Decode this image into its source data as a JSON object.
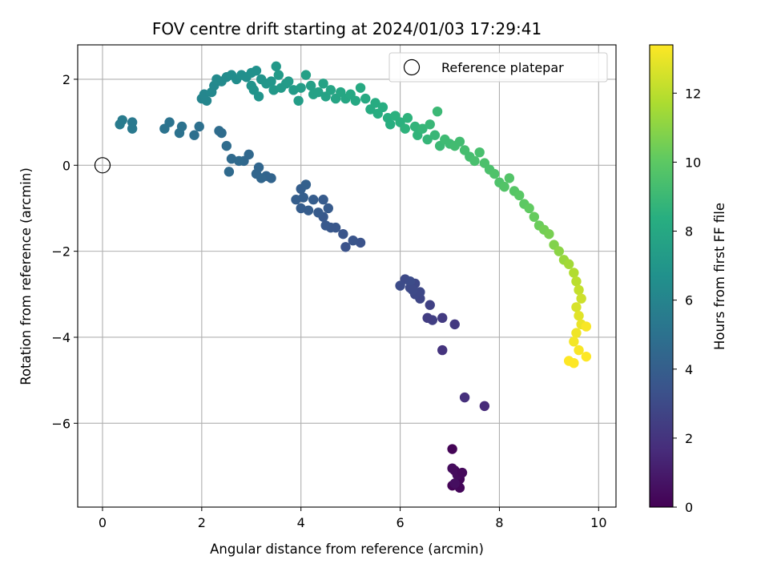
{
  "chart_data": {
    "type": "scatter",
    "title": "FOV centre drift starting at 2024/01/03 17:29:41",
    "xlabel": "Angular distance from reference (arcmin)",
    "ylabel": "Rotation from reference (arcmin)",
    "xlim": [
      -0.5,
      10.35
    ],
    "ylim": [
      -7.95,
      2.8
    ],
    "x_ticks": [
      0,
      2,
      4,
      6,
      8,
      10
    ],
    "y_ticks": [
      -6,
      -4,
      -2,
      0,
      2
    ],
    "x_tick_labels": [
      "0",
      "2",
      "4",
      "6",
      "8",
      "10"
    ],
    "y_tick_labels": [
      "−6",
      "−4",
      "−2",
      "0",
      "2"
    ],
    "grid": true,
    "legend": {
      "placement": "upper-right",
      "entries": [
        "Reference platepar"
      ]
    },
    "reference_point": {
      "x": 0,
      "y": 0
    },
    "colorbar": {
      "label": "Hours from first FF file",
      "colormap": "viridis",
      "range": [
        0,
        13.4
      ],
      "ticks": [
        0,
        2,
        4,
        6,
        8,
        10,
        12
      ],
      "tick_labels": [
        "0",
        "2",
        "4",
        "6",
        "8",
        "10",
        "12"
      ]
    },
    "series": [
      {
        "points": [
          [
            7.05,
            -6.6,
            0.1
          ],
          [
            7.1,
            -7.1,
            0.3
          ],
          [
            7.2,
            -7.3,
            0.2
          ],
          [
            7.15,
            -7.2,
            0.4
          ],
          [
            7.05,
            -7.45,
            0.1
          ],
          [
            7.2,
            -7.5,
            0.2
          ],
          [
            7.25,
            -7.15,
            0.3
          ],
          [
            7.1,
            -7.4,
            0.5
          ],
          [
            7.05,
            -7.05,
            0.4
          ],
          [
            7.7,
            -5.6,
            1.6
          ],
          [
            7.3,
            -5.4,
            1.8
          ],
          [
            6.85,
            -4.3,
            2.0
          ],
          [
            7.1,
            -3.7,
            2.2
          ],
          [
            6.85,
            -3.55,
            2.3
          ],
          [
            6.65,
            -3.6,
            2.5
          ],
          [
            6.55,
            -3.55,
            2.4
          ],
          [
            6.6,
            -3.25,
            2.6
          ],
          [
            6.4,
            -3.1,
            2.8
          ],
          [
            6.3,
            -3.0,
            2.9
          ],
          [
            6.4,
            -2.95,
            2.9
          ],
          [
            6.3,
            -2.75,
            2.9
          ],
          [
            6.2,
            -2.85,
            3.0
          ],
          [
            6.1,
            -2.65,
            3.0
          ],
          [
            6.2,
            -2.7,
            3.1
          ],
          [
            6.0,
            -2.8,
            3.1
          ],
          [
            6.25,
            -2.9,
            3.0
          ],
          [
            5.2,
            -1.8,
            3.4
          ],
          [
            5.05,
            -1.75,
            3.5
          ],
          [
            4.9,
            -1.9,
            3.4
          ],
          [
            4.85,
            -1.6,
            3.5
          ],
          [
            4.7,
            -1.45,
            3.6
          ],
          [
            4.6,
            -1.45,
            3.6
          ],
          [
            4.5,
            -1.4,
            3.7
          ],
          [
            4.45,
            -1.2,
            3.7
          ],
          [
            4.55,
            -1.0,
            3.8
          ],
          [
            4.45,
            -0.8,
            3.8
          ],
          [
            4.25,
            -0.8,
            3.9
          ],
          [
            4.35,
            -1.1,
            3.8
          ],
          [
            4.15,
            -1.05,
            3.9
          ],
          [
            4.0,
            -1.0,
            3.9
          ],
          [
            4.05,
            -0.75,
            4.0
          ],
          [
            3.9,
            -0.8,
            4.0
          ],
          [
            4.0,
            -0.55,
            4.0
          ],
          [
            4.1,
            -0.45,
            4.1
          ],
          [
            3.4,
            -0.3,
            4.3
          ],
          [
            3.3,
            -0.25,
            4.3
          ],
          [
            3.2,
            -0.3,
            4.4
          ],
          [
            3.1,
            -0.2,
            4.4
          ],
          [
            3.15,
            -0.05,
            4.4
          ],
          [
            2.95,
            0.25,
            4.5
          ],
          [
            2.85,
            0.1,
            4.5
          ],
          [
            2.75,
            0.1,
            4.6
          ],
          [
            2.6,
            0.15,
            4.6
          ],
          [
            2.55,
            -0.15,
            4.6
          ],
          [
            2.5,
            0.45,
            4.7
          ],
          [
            2.4,
            0.75,
            4.7
          ],
          [
            2.35,
            0.8,
            4.7
          ],
          [
            1.95,
            0.9,
            4.9
          ],
          [
            1.85,
            0.7,
            4.9
          ],
          [
            1.6,
            0.9,
            5.0
          ],
          [
            1.55,
            0.75,
            5.0
          ],
          [
            1.35,
            1.0,
            5.1
          ],
          [
            1.25,
            0.85,
            5.1
          ],
          [
            0.6,
            0.85,
            5.4
          ],
          [
            0.6,
            1.0,
            5.4
          ],
          [
            0.4,
            1.05,
            5.5
          ],
          [
            0.35,
            0.95,
            5.5
          ],
          [
            2.0,
            1.55,
            6.0
          ],
          [
            2.05,
            1.65,
            6.1
          ],
          [
            2.1,
            1.5,
            6.1
          ],
          [
            2.2,
            1.7,
            6.2
          ],
          [
            2.25,
            1.85,
            6.2
          ],
          [
            2.3,
            2.0,
            6.3
          ],
          [
            2.4,
            1.95,
            6.3
          ],
          [
            2.5,
            2.05,
            6.4
          ],
          [
            2.6,
            2.1,
            6.5
          ],
          [
            2.7,
            2.0,
            6.5
          ],
          [
            2.8,
            2.1,
            6.6
          ],
          [
            2.9,
            2.05,
            6.6
          ],
          [
            3.0,
            2.15,
            6.7
          ],
          [
            3.1,
            2.2,
            6.7
          ],
          [
            3.0,
            1.85,
            6.8
          ],
          [
            3.05,
            1.75,
            6.8
          ],
          [
            3.15,
            1.6,
            6.9
          ],
          [
            3.2,
            2.0,
            6.9
          ],
          [
            3.3,
            1.9,
            7.0
          ],
          [
            3.4,
            1.95,
            7.0
          ],
          [
            3.45,
            1.75,
            7.1
          ],
          [
            3.5,
            2.3,
            7.1
          ],
          [
            3.55,
            2.1,
            7.2
          ],
          [
            3.6,
            1.8,
            7.2
          ],
          [
            3.7,
            1.9,
            7.2
          ],
          [
            3.75,
            1.95,
            7.3
          ],
          [
            3.85,
            1.75,
            7.3
          ],
          [
            3.95,
            1.5,
            7.4
          ],
          [
            4.0,
            1.8,
            7.4
          ],
          [
            4.1,
            2.1,
            7.5
          ],
          [
            4.2,
            1.85,
            7.5
          ],
          [
            4.25,
            1.65,
            7.6
          ],
          [
            4.35,
            1.7,
            7.6
          ],
          [
            4.45,
            1.9,
            7.7
          ],
          [
            4.5,
            1.6,
            7.7
          ],
          [
            4.6,
            1.75,
            7.8
          ],
          [
            4.7,
            1.55,
            7.8
          ],
          [
            4.8,
            1.7,
            7.9
          ],
          [
            4.9,
            1.55,
            7.9
          ],
          [
            5.0,
            1.65,
            8.0
          ],
          [
            5.1,
            1.5,
            8.0
          ],
          [
            5.2,
            1.8,
            8.1
          ],
          [
            5.3,
            1.55,
            8.1
          ],
          [
            5.4,
            1.3,
            8.2
          ],
          [
            5.5,
            1.45,
            8.2
          ],
          [
            5.55,
            1.2,
            8.3
          ],
          [
            5.65,
            1.35,
            8.3
          ],
          [
            5.75,
            1.1,
            8.4
          ],
          [
            5.8,
            0.95,
            8.4
          ],
          [
            5.9,
            1.15,
            8.5
          ],
          [
            6.0,
            1.0,
            8.5
          ],
          [
            6.1,
            0.85,
            8.6
          ],
          [
            6.15,
            1.1,
            8.6
          ],
          [
            6.3,
            0.9,
            8.7
          ],
          [
            6.35,
            0.7,
            8.7
          ],
          [
            6.45,
            0.85,
            8.8
          ],
          [
            6.55,
            0.6,
            8.8
          ],
          [
            6.6,
            0.95,
            8.9
          ],
          [
            6.7,
            0.7,
            8.9
          ],
          [
            6.75,
            1.25,
            9.0
          ],
          [
            6.8,
            0.45,
            9.0
          ],
          [
            6.9,
            0.6,
            9.1
          ],
          [
            7.0,
            0.5,
            9.1
          ],
          [
            7.1,
            0.45,
            9.2
          ],
          [
            7.2,
            0.55,
            9.2
          ],
          [
            7.3,
            0.35,
            9.3
          ],
          [
            7.4,
            0.2,
            9.3
          ],
          [
            7.5,
            0.1,
            9.4
          ],
          [
            7.6,
            0.3,
            9.4
          ],
          [
            7.7,
            0.05,
            9.5
          ],
          [
            7.8,
            -0.1,
            9.5
          ],
          [
            7.9,
            -0.2,
            9.6
          ],
          [
            8.0,
            -0.4,
            9.6
          ],
          [
            8.1,
            -0.5,
            9.7
          ],
          [
            8.2,
            -0.3,
            9.7
          ],
          [
            8.3,
            -0.6,
            9.8
          ],
          [
            8.4,
            -0.7,
            9.9
          ],
          [
            8.5,
            -0.9,
            10.0
          ],
          [
            8.6,
            -1.0,
            10.1
          ],
          [
            8.7,
            -1.2,
            10.2
          ],
          [
            8.8,
            -1.4,
            10.3
          ],
          [
            8.9,
            -1.5,
            10.5
          ],
          [
            9.0,
            -1.6,
            10.6
          ],
          [
            9.1,
            -1.85,
            10.8
          ],
          [
            9.2,
            -2.0,
            11.0
          ],
          [
            9.3,
            -2.2,
            11.3
          ],
          [
            9.4,
            -2.3,
            11.5
          ],
          [
            9.5,
            -2.5,
            11.8
          ],
          [
            9.55,
            -2.7,
            12.0
          ],
          [
            9.6,
            -2.9,
            12.2
          ],
          [
            9.65,
            -3.1,
            12.4
          ],
          [
            9.55,
            -3.3,
            12.6
          ],
          [
            9.6,
            -3.5,
            12.8
          ],
          [
            9.65,
            -3.7,
            13.0
          ],
          [
            9.55,
            -3.9,
            13.1
          ],
          [
            9.5,
            -4.1,
            13.2
          ],
          [
            9.6,
            -4.3,
            13.3
          ],
          [
            9.4,
            -4.55,
            13.4
          ],
          [
            9.5,
            -4.6,
            13.4
          ],
          [
            9.75,
            -4.45,
            13.4
          ],
          [
            9.75,
            -3.75,
            13.3
          ]
        ]
      }
    ]
  }
}
